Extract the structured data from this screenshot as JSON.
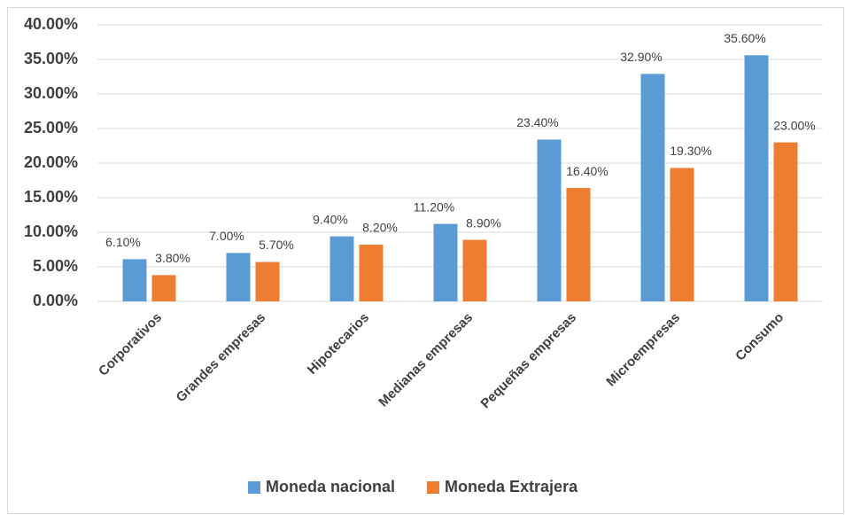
{
  "chart_data": {
    "type": "bar",
    "categories": [
      "Corporativos",
      "Grandes  empresas",
      "Hipotecarios",
      "Medianas  empresas",
      "Pequeñas  empresas",
      "Microempresas",
      "Consumo"
    ],
    "series": [
      {
        "name": "Moneda nacional",
        "color": "#5b9bd5",
        "values": [
          6.1,
          7.0,
          9.4,
          11.2,
          23.4,
          32.9,
          35.6
        ],
        "value_labels": [
          "6.10%",
          "7.00%",
          "9.40%",
          "11.20%",
          "23.40%",
          "32.90%",
          "35.60%"
        ]
      },
      {
        "name": "Moneda Extrajera",
        "color": "#ed7d31",
        "values": [
          3.8,
          5.7,
          8.2,
          8.9,
          16.4,
          19.3,
          23.0
        ],
        "value_labels": [
          "3.80%",
          "5.70%",
          "8.20%",
          "8.90%",
          "16.40%",
          "19.30%",
          "23.00%"
        ]
      }
    ],
    "ylim": [
      0,
      40
    ],
    "yticks": [
      {
        "value": 0,
        "label": "0.00%"
      },
      {
        "value": 5,
        "label": "5.00%"
      },
      {
        "value": 10,
        "label": "10.00%"
      },
      {
        "value": 15,
        "label": "15.00%"
      },
      {
        "value": 20,
        "label": "20.00%"
      },
      {
        "value": 25,
        "label": "25.00%"
      },
      {
        "value": 30,
        "label": "30.00%"
      },
      {
        "value": 35,
        "label": "35.00%"
      },
      {
        "value": 40,
        "label": "40.00%"
      }
    ],
    "grid": true,
    "legend": "bottom"
  }
}
